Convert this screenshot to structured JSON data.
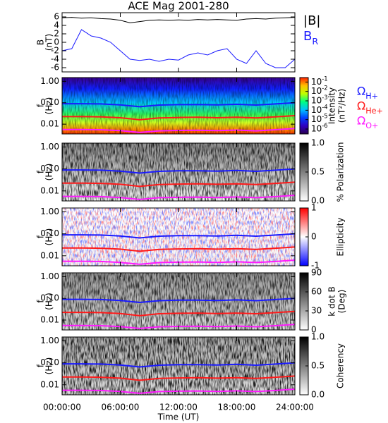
{
  "chart_data": [
    {
      "type": "line",
      "title": "ACE Mag 2001-280",
      "ylabel": [
        "B",
        "(nT)"
      ],
      "xlim": [
        0,
        24
      ],
      "ylim": [
        -7,
        7
      ],
      "yticks": [
        6,
        4,
        2,
        0,
        -2,
        -4,
        -6
      ],
      "x": [
        0,
        1,
        2,
        3,
        4,
        5,
        6,
        7,
        8,
        9,
        10,
        11,
        12,
        13,
        14,
        15,
        16,
        17,
        18,
        19,
        20,
        21,
        22,
        23,
        24
      ],
      "series": [
        {
          "name": "|B|",
          "color": "#000000",
          "values": [
            5.8,
            5.9,
            5.7,
            5.8,
            5.6,
            5.5,
            5.2,
            4.6,
            4.9,
            5.2,
            5.3,
            5.2,
            5.3,
            5.2,
            5.4,
            5.3,
            5.4,
            5.3,
            5.2,
            5.5,
            5.6,
            5.5,
            5.7,
            5.8,
            5.9
          ]
        },
        {
          "name": "B_R",
          "color": "#1a1aff",
          "values": [
            -2,
            -1.5,
            3,
            1.5,
            1,
            0,
            -2,
            -4,
            -4.3,
            -4,
            -4.5,
            -4,
            -4.2,
            -3,
            -2.5,
            -3,
            -2,
            -1.5,
            -4,
            -5,
            -2,
            -5,
            -6,
            -6,
            -4
          ]
        }
      ]
    },
    {
      "type": "spectrogram",
      "ylabel": [
        "f",
        "(Hz)"
      ],
      "xlim": [
        0,
        24
      ],
      "ylog": true,
      "ylim": [
        0.0035,
        1.5
      ],
      "yticks": [
        {
          "value": 1,
          "label": "1.00"
        },
        {
          "value": 0.1,
          "label": "0.10"
        },
        {
          "value": 0.01,
          "label": "0.01"
        }
      ],
      "x": [
        0,
        2,
        4,
        6,
        8,
        10,
        12,
        14,
        16,
        18,
        20,
        22,
        24
      ],
      "series": [
        {
          "name": "Ω_H+",
          "color": "#1a1aff",
          "values": [
            0.09,
            0.09,
            0.088,
            0.08,
            0.065,
            0.078,
            0.082,
            0.083,
            0.08,
            0.085,
            0.078,
            0.088,
            0.1
          ]
        },
        {
          "name": "Ω_He+",
          "color": "#ff1a1a",
          "values": [
            0.0225,
            0.0225,
            0.022,
            0.02,
            0.016,
            0.0195,
            0.0205,
            0.021,
            0.02,
            0.021,
            0.0195,
            0.022,
            0.025
          ]
        },
        {
          "name": "Ω_O+",
          "color": "#ff1aff",
          "values": [
            0.0056,
            0.0056,
            0.0055,
            0.005,
            0.0041,
            0.0049,
            0.0051,
            0.0052,
            0.005,
            0.0053,
            0.0049,
            0.0055,
            0.0063
          ]
        }
      ],
      "colorbar": {
        "label": [
          "Intensity",
          "(nT²/Hz)"
        ],
        "log": true,
        "lim": [
          3e-07,
          0.3
        ],
        "ticks": [
          {
            "value": 0.1,
            "label": "10^-1"
          },
          {
            "value": 0.01,
            "label": "10^-2"
          },
          {
            "value": 0.001,
            "label": "10^-3"
          },
          {
            "value": 0.0001,
            "label": "10^-4"
          },
          {
            "value": 1e-05,
            "label": "10^-5"
          },
          {
            "value": 1e-06,
            "label": "10^-6"
          }
        ],
        "colormap": [
          "#2a0050",
          "#3000c0",
          "#0040ff",
          "#00c0ff",
          "#00ff80",
          "#c0ff00",
          "#ffc000",
          "#ff2000"
        ]
      }
    },
    {
      "type": "spectrogram",
      "ylabel": [
        "f",
        "(Hz)"
      ],
      "xlim": [
        0,
        24
      ],
      "ylog": true,
      "ylim": [
        0.0035,
        1.5
      ],
      "yticks": [
        {
          "value": 1,
          "label": "1.00"
        },
        {
          "value": 0.1,
          "label": "0.10"
        },
        {
          "value": 0.01,
          "label": "0.01"
        }
      ],
      "x": [
        0,
        2,
        4,
        6,
        8,
        10,
        12,
        14,
        16,
        18,
        20,
        22,
        24
      ],
      "series": [
        {
          "color": "#1a1aff",
          "values": [
            0.09,
            0.09,
            0.088,
            0.08,
            0.065,
            0.078,
            0.082,
            0.083,
            0.08,
            0.085,
            0.078,
            0.088,
            0.1
          ]
        },
        {
          "color": "#ff1a1a",
          "values": [
            0.0225,
            0.0225,
            0.022,
            0.02,
            0.016,
            0.0195,
            0.0205,
            0.021,
            0.02,
            0.021,
            0.0195,
            0.022,
            0.025
          ]
        },
        {
          "color": "#ff1aff",
          "values": [
            0.0056,
            0.0056,
            0.0055,
            0.005,
            0.0041,
            0.0049,
            0.0051,
            0.0052,
            0.005,
            0.0053,
            0.0049,
            0.0055,
            0.0063
          ]
        }
      ],
      "colorbar": {
        "label": [
          "% Polarization"
        ],
        "log": false,
        "lim": [
          0,
          1
        ],
        "ticks": [
          {
            "value": 1,
            "label": "1.0"
          },
          {
            "value": 0.5,
            "label": "0.5"
          },
          {
            "value": 0,
            "label": "0.0"
          }
        ],
        "colormap": [
          "#ffffff",
          "#000000"
        ]
      }
    },
    {
      "type": "spectrogram",
      "ylabel": [
        "f",
        "(Hz)"
      ],
      "xlim": [
        0,
        24
      ],
      "ylog": true,
      "ylim": [
        0.0035,
        1.5
      ],
      "yticks": [
        {
          "value": 1,
          "label": "1.00"
        },
        {
          "value": 0.1,
          "label": "0.10"
        },
        {
          "value": 0.01,
          "label": "0.01"
        }
      ],
      "x": [
        0,
        2,
        4,
        6,
        8,
        10,
        12,
        14,
        16,
        18,
        20,
        22,
        24
      ],
      "series": [
        {
          "color": "#1a1aff",
          "values": [
            0.09,
            0.09,
            0.088,
            0.08,
            0.065,
            0.078,
            0.082,
            0.083,
            0.08,
            0.085,
            0.078,
            0.088,
            0.1
          ]
        },
        {
          "color": "#ff1a1a",
          "values": [
            0.0225,
            0.0225,
            0.022,
            0.02,
            0.016,
            0.0195,
            0.0205,
            0.021,
            0.02,
            0.021,
            0.0195,
            0.022,
            0.025
          ]
        },
        {
          "color": "#ff1aff",
          "values": [
            0.0056,
            0.0056,
            0.0055,
            0.005,
            0.0041,
            0.0049,
            0.0051,
            0.0052,
            0.005,
            0.0053,
            0.0049,
            0.0055,
            0.0063
          ]
        }
      ],
      "colorbar": {
        "label": [
          "Ellipticity"
        ],
        "log": false,
        "lim": [
          -1,
          1
        ],
        "ticks": [
          1,
          0,
          -1
        ],
        "colormap": [
          "#0000ff",
          "#ffffff",
          "#ff0000"
        ]
      }
    },
    {
      "type": "spectrogram",
      "ylabel": [
        "f",
        "(Hz)"
      ],
      "xlim": [
        0,
        24
      ],
      "ylog": true,
      "ylim": [
        0.0035,
        1.5
      ],
      "yticks": [
        {
          "value": 1,
          "label": "1.00"
        },
        {
          "value": 0.1,
          "label": "0.10"
        },
        {
          "value": 0.01,
          "label": "0.01"
        }
      ],
      "x": [
        0,
        2,
        4,
        6,
        8,
        10,
        12,
        14,
        16,
        18,
        20,
        22,
        24
      ],
      "series": [
        {
          "color": "#1a1aff",
          "values": [
            0.09,
            0.09,
            0.088,
            0.08,
            0.065,
            0.078,
            0.082,
            0.083,
            0.08,
            0.085,
            0.078,
            0.088,
            0.1
          ]
        },
        {
          "color": "#ff1a1a",
          "values": [
            0.0225,
            0.0225,
            0.022,
            0.02,
            0.016,
            0.0195,
            0.0205,
            0.021,
            0.02,
            0.021,
            0.0195,
            0.022,
            0.025
          ]
        },
        {
          "color": "#ff1aff",
          "values": [
            0.0056,
            0.0056,
            0.0055,
            0.005,
            0.0041,
            0.0049,
            0.0051,
            0.0052,
            0.005,
            0.0053,
            0.0049,
            0.0055,
            0.0063
          ]
        }
      ],
      "colorbar": {
        "label": [
          "k dot B",
          "(Deg)"
        ],
        "log": false,
        "lim": [
          0,
          90
        ],
        "ticks": [
          90,
          60,
          30,
          0
        ],
        "colormap": [
          "#ffffff",
          "#000000"
        ]
      }
    },
    {
      "type": "spectrogram",
      "ylabel": [
        "f",
        "(Hz)"
      ],
      "xlim": [
        0,
        24
      ],
      "ylog": true,
      "ylim": [
        0.0035,
        1.5
      ],
      "yticks": [
        {
          "value": 1,
          "label": "1.00"
        },
        {
          "value": 0.1,
          "label": "0.10"
        },
        {
          "value": 0.01,
          "label": "0.01"
        }
      ],
      "x": [
        0,
        2,
        4,
        6,
        8,
        10,
        12,
        14,
        16,
        18,
        20,
        22,
        24
      ],
      "series": [
        {
          "color": "#1a1aff",
          "values": [
            0.09,
            0.09,
            0.088,
            0.08,
            0.065,
            0.078,
            0.082,
            0.083,
            0.08,
            0.085,
            0.078,
            0.088,
            0.1
          ]
        },
        {
          "color": "#ff1a1a",
          "values": [
            0.0225,
            0.0225,
            0.022,
            0.02,
            0.016,
            0.0195,
            0.0205,
            0.021,
            0.02,
            0.021,
            0.0195,
            0.022,
            0.025
          ]
        },
        {
          "color": "#ff1aff",
          "values": [
            0.0056,
            0.0056,
            0.0055,
            0.005,
            0.0041,
            0.0049,
            0.0051,
            0.0052,
            0.005,
            0.0053,
            0.0049,
            0.0055,
            0.0063
          ]
        }
      ],
      "colorbar": {
        "label": [
          "Coherency"
        ],
        "log": false,
        "lim": [
          0,
          1
        ],
        "ticks": [
          {
            "value": 1,
            "label": "1.0"
          },
          {
            "value": 0.5,
            "label": "0.5"
          },
          {
            "value": 0,
            "label": "0.0"
          }
        ],
        "colormap": [
          "#ffffff",
          "#000000"
        ]
      },
      "xlabel": "Time (UT)",
      "xticks": [
        {
          "value": 0,
          "label": "00:00:00"
        },
        {
          "value": 6,
          "label": "06:00:00"
        },
        {
          "value": 12,
          "label": "12:00:00"
        },
        {
          "value": 18,
          "label": "18:00:00"
        },
        {
          "value": 24,
          "label": "24:00:00"
        }
      ]
    }
  ]
}
